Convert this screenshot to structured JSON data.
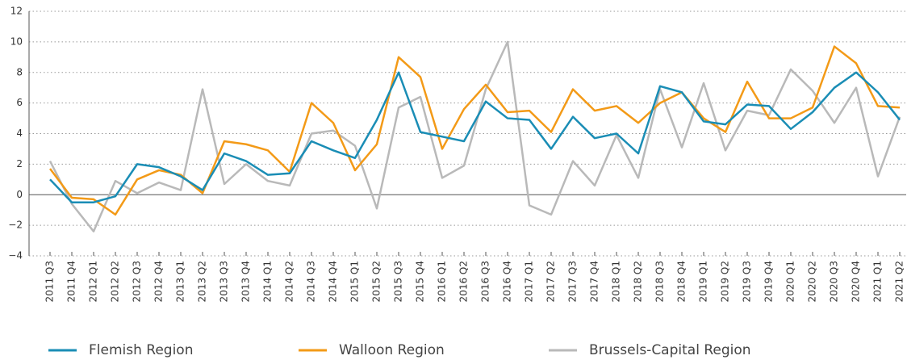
{
  "chart_data": {
    "type": "line",
    "categories": [
      "2011 Q3",
      "2011 Q4",
      "2012 Q1",
      "2012 Q2",
      "2012 Q3",
      "2012 Q4",
      "2013 Q1",
      "2013 Q2",
      "2013 Q3",
      "2013 Q4",
      "2014 Q1",
      "2014 Q2",
      "2014 Q3",
      "2014 Q4",
      "2015 Q1",
      "2015 Q2",
      "2015 Q3",
      "2015 Q4",
      "2016 Q1",
      "2016 Q2",
      "2016 Q3",
      "2016 Q4",
      "2017 Q1",
      "2017 Q2",
      "2017 Q3",
      "2017 Q4",
      "2018 Q1",
      "2018 Q2",
      "2018 Q3",
      "2018 Q4",
      "2019 Q1",
      "2019 Q2",
      "2019 Q3",
      "2019 Q4",
      "2020 Q1",
      "2020 Q2",
      "2020 Q3",
      "2020 Q4",
      "2021 Q1",
      "2021 Q2"
    ],
    "series": [
      {
        "name": "Flemish Region",
        "color": "#1a8db5",
        "values": [
          1.0,
          -0.5,
          -0.5,
          -0.1,
          2.0,
          1.8,
          1.2,
          0.3,
          2.7,
          2.2,
          1.3,
          1.4,
          3.5,
          2.9,
          2.4,
          4.9,
          8.0,
          4.1,
          3.8,
          3.5,
          6.1,
          5.0,
          4.9,
          3.0,
          5.1,
          3.7,
          4.0,
          2.7,
          7.1,
          6.7,
          4.8,
          4.6,
          5.9,
          5.8,
          4.3,
          5.4,
          7.0,
          8.0,
          6.7,
          4.9
        ]
      },
      {
        "name": "Walloon Region",
        "color": "#f39a17",
        "values": [
          1.7,
          -0.2,
          -0.3,
          -1.3,
          1.0,
          1.6,
          1.3,
          0.1,
          3.5,
          3.3,
          2.9,
          1.5,
          6.0,
          4.7,
          1.6,
          3.3,
          9.0,
          7.7,
          3.0,
          5.6,
          7.2,
          5.4,
          5.5,
          4.1,
          6.9,
          5.5,
          5.8,
          4.7,
          6.0,
          6.7,
          5.0,
          4.1,
          7.4,
          5.0,
          5.0,
          5.7,
          9.7,
          8.6,
          5.8,
          5.7
        ]
      },
      {
        "name": "Brussels-Capital Region",
        "color": "#b9b9b9",
        "values": [
          2.2,
          -0.6,
          -2.4,
          0.9,
          0.1,
          0.8,
          0.3,
          6.9,
          0.7,
          2.0,
          0.9,
          0.6,
          4.0,
          4.2,
          3.2,
          -0.9,
          5.7,
          6.4,
          1.1,
          1.9,
          6.9,
          10.0,
          -0.7,
          -1.3,
          2.2,
          0.6,
          3.9,
          1.1,
          6.9,
          3.1,
          7.3,
          2.9,
          5.5,
          5.2,
          8.2,
          6.8,
          4.7,
          7.0,
          1.2,
          5.1
        ]
      }
    ],
    "ylim": [
      -4,
      12
    ],
    "yticks": [
      {
        "value": -4,
        "label": "−4"
      },
      {
        "value": -2,
        "label": "−2"
      },
      0,
      2,
      4,
      6,
      8,
      10,
      12
    ],
    "grid": true
  }
}
